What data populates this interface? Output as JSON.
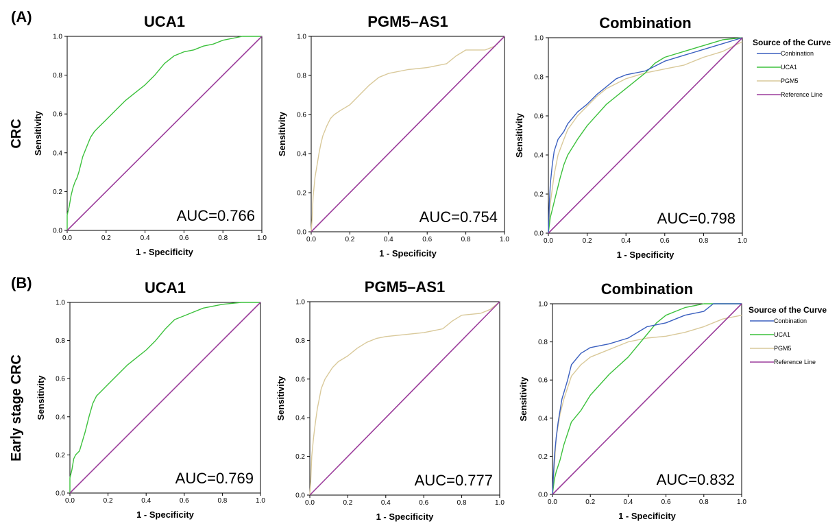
{
  "panels": [
    {
      "label": "(A)",
      "row_label": "CRC"
    },
    {
      "label": "(B)",
      "row_label": "Early stage CRC"
    }
  ],
  "legend": {
    "title": "Source of the Curve",
    "entries": [
      "Conbination",
      "UCA1",
      "PGM5",
      "Reference Line"
    ]
  },
  "colors": {
    "combination": "#3a5fbf",
    "uca1": "#3cc13c",
    "pgm5": "#d9c99a",
    "reference": "#9b3c9b"
  },
  "chart_data": [
    {
      "type": "line",
      "title": "UCA1",
      "xlabel": "1 - Specificity",
      "ylabel": "Sensitivity",
      "xlim": [
        0,
        1
      ],
      "ylim": [
        0,
        1
      ],
      "xticks": [
        "0.0",
        "0.2",
        "0.4",
        "0.6",
        "0.8",
        "1.0"
      ],
      "yticks": [
        "0.0",
        "0.2",
        "0.4",
        "0.6",
        "0.8",
        "1.0"
      ],
      "annotation": "AUC=0.766",
      "series": [
        {
          "key": "uca1",
          "x": [
            0,
            0,
            0.01,
            0.02,
            0.03,
            0.04,
            0.05,
            0.06,
            0.08,
            0.1,
            0.12,
            0.14,
            0.16,
            0.2,
            0.25,
            0.3,
            0.35,
            0.4,
            0.45,
            0.5,
            0.55,
            0.6,
            0.65,
            0.7,
            0.75,
            0.8,
            0.9,
            1.0
          ],
          "y": [
            0,
            0.08,
            0.12,
            0.18,
            0.22,
            0.25,
            0.27,
            0.3,
            0.38,
            0.43,
            0.48,
            0.51,
            0.53,
            0.57,
            0.62,
            0.67,
            0.71,
            0.75,
            0.8,
            0.86,
            0.9,
            0.92,
            0.93,
            0.95,
            0.96,
            0.98,
            1.0,
            1.0
          ]
        },
        {
          "key": "reference",
          "x": [
            0,
            1
          ],
          "y": [
            0,
            1
          ]
        }
      ]
    },
    {
      "type": "line",
      "title": "PGM5–AS1",
      "xlabel": "1 - Specificity",
      "ylabel": "Sensitivity",
      "xlim": [
        0,
        1
      ],
      "ylim": [
        0,
        1
      ],
      "xticks": [
        "0.0",
        "0.2",
        "0.4",
        "0.6",
        "0.8",
        "1.0"
      ],
      "yticks": [
        "0.0",
        "0.2",
        "0.4",
        "0.6",
        "0.8",
        "1.0"
      ],
      "annotation": "AUC=0.754",
      "series": [
        {
          "key": "pgm5",
          "x": [
            0,
            0.005,
            0.01,
            0.02,
            0.03,
            0.04,
            0.05,
            0.06,
            0.08,
            0.1,
            0.12,
            0.15,
            0.2,
            0.25,
            0.3,
            0.35,
            0.4,
            0.5,
            0.6,
            0.7,
            0.75,
            0.8,
            0.9,
            0.95,
            1.0
          ],
          "y": [
            0,
            0.07,
            0.18,
            0.28,
            0.34,
            0.4,
            0.45,
            0.49,
            0.54,
            0.58,
            0.6,
            0.62,
            0.65,
            0.7,
            0.75,
            0.79,
            0.81,
            0.83,
            0.84,
            0.86,
            0.9,
            0.93,
            0.93,
            0.95,
            1.0
          ]
        },
        {
          "key": "reference",
          "x": [
            0,
            1
          ],
          "y": [
            0,
            1
          ]
        }
      ]
    },
    {
      "type": "line",
      "title": "Combination",
      "xlabel": "1 - Specificity",
      "ylabel": "Sensitivity",
      "xlim": [
        0,
        1
      ],
      "ylim": [
        0,
        1
      ],
      "xticks": [
        "0.0",
        "0.2",
        "0.4",
        "0.6",
        "0.8",
        "1.0"
      ],
      "yticks": [
        "0.0",
        "0.2",
        "0.4",
        "0.6",
        "0.8",
        "1.0"
      ],
      "annotation": "AUC=0.798",
      "series": [
        {
          "key": "pgm5",
          "x": [
            0,
            0.01,
            0.03,
            0.05,
            0.08,
            0.1,
            0.15,
            0.2,
            0.25,
            0.3,
            0.4,
            0.5,
            0.6,
            0.7,
            0.8,
            0.9,
            1.0
          ],
          "y": [
            0,
            0.15,
            0.3,
            0.4,
            0.48,
            0.53,
            0.6,
            0.65,
            0.7,
            0.74,
            0.79,
            0.82,
            0.84,
            0.86,
            0.9,
            0.93,
            0.98
          ]
        },
        {
          "key": "uca1",
          "x": [
            0,
            0.01,
            0.02,
            0.04,
            0.06,
            0.08,
            0.1,
            0.15,
            0.2,
            0.3,
            0.4,
            0.5,
            0.55,
            0.6,
            0.7,
            0.8,
            0.9,
            1.0
          ],
          "y": [
            0,
            0.08,
            0.12,
            0.2,
            0.28,
            0.35,
            0.4,
            0.48,
            0.55,
            0.66,
            0.74,
            0.82,
            0.87,
            0.9,
            0.93,
            0.96,
            0.99,
            1.0
          ]
        },
        {
          "key": "combination",
          "x": [
            0,
            0.005,
            0.01,
            0.02,
            0.03,
            0.05,
            0.08,
            0.1,
            0.15,
            0.2,
            0.25,
            0.3,
            0.35,
            0.4,
            0.5,
            0.6,
            0.7,
            0.8,
            0.9,
            1.0
          ],
          "y": [
            0,
            0.15,
            0.25,
            0.35,
            0.42,
            0.48,
            0.52,
            0.56,
            0.62,
            0.66,
            0.71,
            0.75,
            0.79,
            0.81,
            0.83,
            0.88,
            0.91,
            0.94,
            0.97,
            1.0
          ]
        },
        {
          "key": "reference",
          "x": [
            0,
            1
          ],
          "y": [
            0,
            1
          ]
        }
      ]
    },
    {
      "type": "line",
      "title": "UCA1",
      "xlabel": "1 - Specificity",
      "ylabel": "Sensitivity",
      "xlim": [
        0,
        1
      ],
      "ylim": [
        0,
        1
      ],
      "xticks": [
        "0.0",
        "0.2",
        "0.4",
        "0.6",
        "0.8",
        "1.0"
      ],
      "yticks": [
        "0.0",
        "0.2",
        "0.4",
        "0.6",
        "0.8",
        "1.0"
      ],
      "annotation": "AUC=0.769",
      "series": [
        {
          "key": "uca1",
          "x": [
            0,
            0,
            0.01,
            0.02,
            0.03,
            0.05,
            0.08,
            0.1,
            0.12,
            0.14,
            0.16,
            0.2,
            0.25,
            0.3,
            0.35,
            0.4,
            0.45,
            0.5,
            0.55,
            0.6,
            0.65,
            0.7,
            0.75,
            0.8,
            0.9,
            1.0
          ],
          "y": [
            0,
            0.08,
            0.12,
            0.18,
            0.2,
            0.22,
            0.32,
            0.4,
            0.47,
            0.51,
            0.53,
            0.57,
            0.62,
            0.67,
            0.71,
            0.75,
            0.8,
            0.86,
            0.91,
            0.93,
            0.95,
            0.97,
            0.98,
            0.99,
            1.0,
            1.0
          ]
        },
        {
          "key": "reference",
          "x": [
            0,
            1
          ],
          "y": [
            0,
            1
          ]
        }
      ]
    },
    {
      "type": "line",
      "title": "PGM5–AS1",
      "xlabel": "1 - Specificity",
      "ylabel": "Sensitivity",
      "xlim": [
        0,
        1
      ],
      "ylim": [
        0,
        1
      ],
      "xticks": [
        "0.0",
        "0.2",
        "0.4",
        "0.6",
        "0.8",
        "1.0"
      ],
      "yticks": [
        "0.0",
        "0.2",
        "0.4",
        "0.6",
        "0.8",
        "1.0"
      ],
      "annotation": "AUC=0.777",
      "series": [
        {
          "key": "pgm5",
          "x": [
            0,
            0.005,
            0.01,
            0.02,
            0.03,
            0.04,
            0.05,
            0.06,
            0.08,
            0.1,
            0.12,
            0.15,
            0.2,
            0.25,
            0.3,
            0.35,
            0.4,
            0.5,
            0.6,
            0.7,
            0.75,
            0.8,
            0.9,
            0.95,
            1.0
          ],
          "y": [
            0,
            0.08,
            0.2,
            0.3,
            0.38,
            0.45,
            0.5,
            0.55,
            0.6,
            0.63,
            0.66,
            0.69,
            0.72,
            0.76,
            0.79,
            0.81,
            0.82,
            0.83,
            0.84,
            0.86,
            0.9,
            0.93,
            0.94,
            0.96,
            1.0
          ]
        },
        {
          "key": "reference",
          "x": [
            0,
            1
          ],
          "y": [
            0,
            1
          ]
        }
      ]
    },
    {
      "type": "line",
      "title": "Combination",
      "xlabel": "1 - Specificity",
      "ylabel": "Sensitivity",
      "xlim": [
        0,
        1
      ],
      "ylim": [
        0,
        1
      ],
      "xticks": [
        "0.0",
        "0.2",
        "0.4",
        "0.6",
        "0.8",
        "1.0"
      ],
      "yticks": [
        "0.0",
        "0.2",
        "0.4",
        "0.6",
        "0.8",
        "1.0"
      ],
      "annotation": "AUC=0.832",
      "series": [
        {
          "key": "pgm5",
          "x": [
            0,
            0.01,
            0.02,
            0.04,
            0.06,
            0.08,
            0.1,
            0.15,
            0.2,
            0.3,
            0.4,
            0.5,
            0.6,
            0.7,
            0.8,
            0.9,
            1.0
          ],
          "y": [
            0,
            0.15,
            0.3,
            0.42,
            0.5,
            0.56,
            0.62,
            0.68,
            0.72,
            0.76,
            0.8,
            0.82,
            0.83,
            0.85,
            0.88,
            0.92,
            0.94
          ]
        },
        {
          "key": "uca1",
          "x": [
            0,
            0.01,
            0.02,
            0.04,
            0.06,
            0.08,
            0.1,
            0.15,
            0.2,
            0.3,
            0.4,
            0.5,
            0.55,
            0.6,
            0.65,
            0.7,
            0.8,
            0.9,
            1.0
          ],
          "y": [
            0,
            0.08,
            0.12,
            0.18,
            0.26,
            0.32,
            0.38,
            0.44,
            0.52,
            0.63,
            0.72,
            0.84,
            0.9,
            0.94,
            0.96,
            0.98,
            1.0,
            1.0,
            1.0
          ]
        },
        {
          "key": "combination",
          "x": [
            0,
            0.005,
            0.01,
            0.02,
            0.03,
            0.05,
            0.08,
            0.1,
            0.15,
            0.2,
            0.3,
            0.4,
            0.5,
            0.6,
            0.7,
            0.8,
            0.85,
            1.0
          ],
          "y": [
            0,
            0.1,
            0.2,
            0.3,
            0.38,
            0.5,
            0.6,
            0.68,
            0.74,
            0.77,
            0.79,
            0.82,
            0.88,
            0.9,
            0.94,
            0.96,
            1.0,
            1.0
          ]
        },
        {
          "key": "reference",
          "x": [
            0,
            1
          ],
          "y": [
            0,
            1
          ]
        }
      ]
    }
  ]
}
